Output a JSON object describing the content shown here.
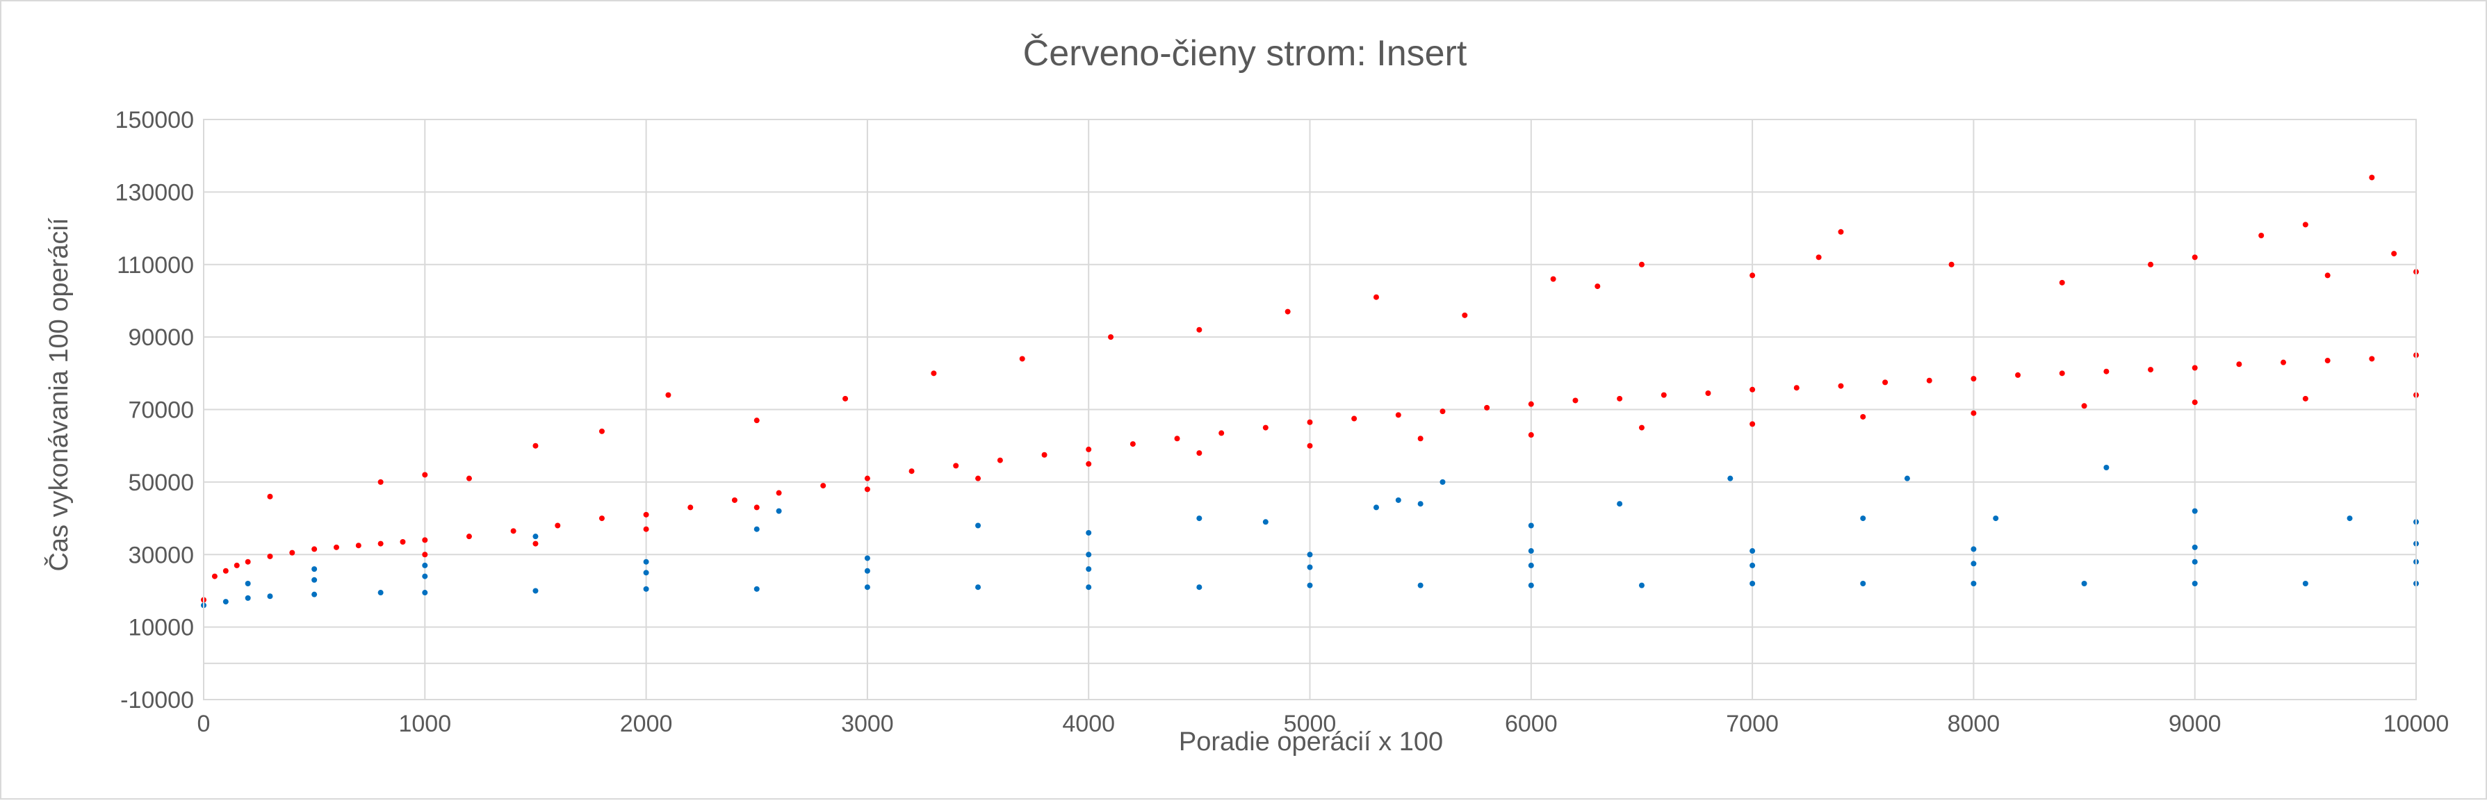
{
  "chart_data": {
    "type": "scatter",
    "title": "Červeno-čieny strom: Insert",
    "xlabel": "Poradie operácií x 100",
    "ylabel": "Čas vykonávania 100 operácií",
    "xlim": [
      0,
      10000
    ],
    "ylim": [
      -10000,
      150000
    ],
    "x_ticks": [
      0,
      1000,
      2000,
      3000,
      4000,
      5000,
      6000,
      7000,
      8000,
      9000,
      10000
    ],
    "y_ticks": [
      -10000,
      10000,
      30000,
      50000,
      70000,
      90000,
      110000,
      130000,
      150000
    ],
    "x_tick_labels": [
      "0",
      "1000",
      "2000",
      "3000",
      "4000",
      "5000",
      "6000",
      "7000",
      "8000",
      "9000",
      "10000"
    ],
    "y_tick_labels": [
      "-10000",
      "10000",
      "30000",
      "50000",
      "70000",
      "90000",
      "110000",
      "130000",
      "150000"
    ],
    "grid": true,
    "legend": "none",
    "series": [
      {
        "color": "#ff0000",
        "points": [
          [
            0,
            17500
          ],
          [
            50,
            24000
          ],
          [
            100,
            25500
          ],
          [
            150,
            27000
          ],
          [
            200,
            28000
          ],
          [
            300,
            29500
          ],
          [
            400,
            30500
          ],
          [
            500,
            31500
          ],
          [
            600,
            32000
          ],
          [
            700,
            32500
          ],
          [
            800,
            33000
          ],
          [
            900,
            33500
          ],
          [
            1000,
            34000
          ],
          [
            1200,
            35000
          ],
          [
            1400,
            36500
          ],
          [
            1600,
            38000
          ],
          [
            1800,
            40000
          ],
          [
            2000,
            41000
          ],
          [
            2200,
            43000
          ],
          [
            2400,
            45000
          ],
          [
            2600,
            47000
          ],
          [
            2800,
            49000
          ],
          [
            3000,
            51000
          ],
          [
            3200,
            53000
          ],
          [
            3400,
            54500
          ],
          [
            3600,
            56000
          ],
          [
            3800,
            57500
          ],
          [
            4000,
            59000
          ],
          [
            4200,
            60500
          ],
          [
            4400,
            62000
          ],
          [
            4600,
            63500
          ],
          [
            4800,
            65000
          ],
          [
            5000,
            66500
          ],
          [
            5200,
            67500
          ],
          [
            5400,
            68500
          ],
          [
            5600,
            69500
          ],
          [
            5800,
            70500
          ],
          [
            6000,
            71500
          ],
          [
            6200,
            72500
          ],
          [
            6400,
            73000
          ],
          [
            6600,
            74000
          ],
          [
            6800,
            74500
          ],
          [
            7000,
            75500
          ],
          [
            7200,
            76000
          ],
          [
            7400,
            76500
          ],
          [
            7600,
            77500
          ],
          [
            7800,
            78000
          ],
          [
            8000,
            78500
          ],
          [
            8200,
            79500
          ],
          [
            8400,
            80000
          ],
          [
            8600,
            80500
          ],
          [
            8800,
            81000
          ],
          [
            9000,
            81500
          ],
          [
            9200,
            82500
          ],
          [
            9400,
            83000
          ],
          [
            9600,
            83500
          ],
          [
            9800,
            84000
          ],
          [
            10000,
            85000
          ],
          [
            300,
            46000
          ],
          [
            800,
            50000
          ],
          [
            1000,
            52000
          ],
          [
            1200,
            51000
          ],
          [
            1500,
            60000
          ],
          [
            1800,
            64000
          ],
          [
            2100,
            74000
          ],
          [
            2500,
            67000
          ],
          [
            2900,
            73000
          ],
          [
            3300,
            80000
          ],
          [
            3700,
            84000
          ],
          [
            4100,
            90000
          ],
          [
            4500,
            92000
          ],
          [
            4900,
            97000
          ],
          [
            5300,
            101000
          ],
          [
            5700,
            96000
          ],
          [
            6100,
            106000
          ],
          [
            6300,
            104000
          ],
          [
            6500,
            110000
          ],
          [
            7000,
            107000
          ],
          [
            7300,
            112000
          ],
          [
            7400,
            119000
          ],
          [
            7900,
            110000
          ],
          [
            8400,
            105000
          ],
          [
            8800,
            110000
          ],
          [
            9000,
            112000
          ],
          [
            9300,
            118000
          ],
          [
            9500,
            121000
          ],
          [
            9600,
            107000
          ],
          [
            9800,
            134000
          ],
          [
            9900,
            113000
          ],
          [
            10000,
            108000
          ],
          [
            1000,
            30000
          ],
          [
            1500,
            33000
          ],
          [
            2000,
            37000
          ],
          [
            2500,
            43000
          ],
          [
            3000,
            48000
          ],
          [
            3500,
            51000
          ],
          [
            4000,
            55000
          ],
          [
            4500,
            58000
          ],
          [
            5000,
            60000
          ],
          [
            5500,
            62000
          ],
          [
            6000,
            63000
          ],
          [
            6500,
            65000
          ],
          [
            7000,
            66000
          ],
          [
            7500,
            68000
          ],
          [
            8000,
            69000
          ],
          [
            8500,
            71000
          ],
          [
            9000,
            72000
          ],
          [
            9500,
            73000
          ],
          [
            10000,
            74000
          ]
        ]
      },
      {
        "color": "#0070c0",
        "points": [
          [
            0,
            16000
          ],
          [
            100,
            17000
          ],
          [
            200,
            18000
          ],
          [
            300,
            18500
          ],
          [
            500,
            19000
          ],
          [
            800,
            19500
          ],
          [
            1000,
            19500
          ],
          [
            1500,
            20000
          ],
          [
            2000,
            20500
          ],
          [
            2500,
            20500
          ],
          [
            3000,
            21000
          ],
          [
            3500,
            21000
          ],
          [
            4000,
            21000
          ],
          [
            4500,
            21000
          ],
          [
            5000,
            21500
          ],
          [
            5500,
            21500
          ],
          [
            6000,
            21500
          ],
          [
            6500,
            21500
          ],
          [
            7000,
            22000
          ],
          [
            7500,
            22000
          ],
          [
            8000,
            22000
          ],
          [
            8500,
            22000
          ],
          [
            9000,
            22000
          ],
          [
            9500,
            22000
          ],
          [
            10000,
            22000
          ],
          [
            200,
            22000
          ],
          [
            500,
            23000
          ],
          [
            1000,
            24000
          ],
          [
            2000,
            25000
          ],
          [
            3000,
            25500
          ],
          [
            4000,
            26000
          ],
          [
            5000,
            26500
          ],
          [
            6000,
            27000
          ],
          [
            7000,
            27000
          ],
          [
            8000,
            27500
          ],
          [
            9000,
            28000
          ],
          [
            10000,
            28000
          ],
          [
            500,
            26000
          ],
          [
            1000,
            27000
          ],
          [
            2000,
            28000
          ],
          [
            3000,
            29000
          ],
          [
            4000,
            30000
          ],
          [
            5000,
            30000
          ],
          [
            6000,
            31000
          ],
          [
            7000,
            31000
          ],
          [
            8000,
            31500
          ],
          [
            9000,
            32000
          ],
          [
            10000,
            33000
          ],
          [
            1500,
            35000
          ],
          [
            2500,
            37000
          ],
          [
            2600,
            42000
          ],
          [
            3500,
            38000
          ],
          [
            4000,
            36000
          ],
          [
            4500,
            40000
          ],
          [
            4800,
            39000
          ],
          [
            5300,
            43000
          ],
          [
            5400,
            45000
          ],
          [
            5500,
            44000
          ],
          [
            5600,
            50000
          ],
          [
            6000,
            38000
          ],
          [
            6400,
            44000
          ],
          [
            6900,
            51000
          ],
          [
            7500,
            40000
          ],
          [
            7700,
            51000
          ],
          [
            8100,
            40000
          ],
          [
            8600,
            54000
          ],
          [
            9000,
            42000
          ],
          [
            9700,
            40000
          ],
          [
            10000,
            39000
          ]
        ]
      }
    ]
  }
}
